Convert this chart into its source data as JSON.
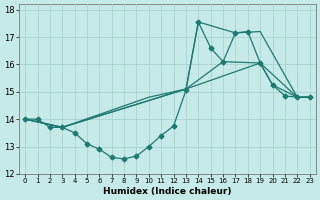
{
  "background_color": "#c6eae7",
  "grid_color": "#aad4cf",
  "line_color": "#1e7a70",
  "xlabel": "Humidex (Indice chaleur)",
  "ylim": [
    12,
    18.2
  ],
  "xlim": [
    -0.5,
    23.5
  ],
  "yticks": [
    12,
    13,
    14,
    15,
    16,
    17,
    18
  ],
  "xticks": [
    0,
    1,
    2,
    3,
    4,
    5,
    6,
    7,
    8,
    9,
    10,
    11,
    12,
    13,
    14,
    15,
    16,
    17,
    18,
    19,
    20,
    21,
    22,
    23
  ],
  "lines": [
    {
      "x": [
        0,
        1,
        2,
        3,
        4,
        5,
        6,
        7,
        8,
        9,
        10,
        11,
        12,
        13,
        14,
        15,
        16,
        17,
        18,
        19,
        20,
        21,
        22,
        23
      ],
      "y": [
        14.0,
        14.0,
        13.7,
        13.7,
        13.5,
        13.1,
        12.9,
        12.6,
        12.55,
        12.65,
        13.0,
        13.4,
        13.75,
        15.05,
        17.55,
        16.6,
        16.1,
        17.15,
        17.2,
        16.05,
        15.25,
        14.85,
        14.8,
        14.8
      ],
      "style": "-",
      "marker": "D",
      "markersize": 2.5,
      "linewidth": 0.9
    },
    {
      "x": [
        0,
        3,
        10,
        13,
        19,
        22,
        23
      ],
      "y": [
        14.0,
        13.7,
        14.8,
        15.1,
        16.05,
        14.8,
        14.8
      ],
      "style": "-",
      "marker": null,
      "markersize": 0,
      "linewidth": 0.9
    },
    {
      "x": [
        0,
        3,
        13,
        14,
        17,
        19,
        22,
        23
      ],
      "y": [
        14.0,
        13.7,
        15.1,
        17.55,
        17.15,
        17.2,
        14.8,
        14.8
      ],
      "style": "-",
      "marker": null,
      "markersize": 0,
      "linewidth": 0.9
    },
    {
      "x": [
        0,
        3,
        13,
        16,
        19,
        20,
        22,
        23
      ],
      "y": [
        14.0,
        13.7,
        15.1,
        16.1,
        16.05,
        15.25,
        14.8,
        14.8
      ],
      "style": "-",
      "marker": null,
      "markersize": 0,
      "linewidth": 0.9
    }
  ]
}
